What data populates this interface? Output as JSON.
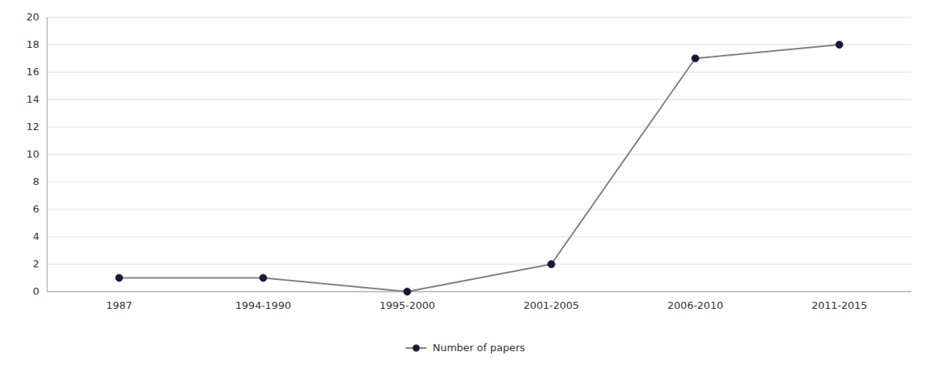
{
  "chart_data": {
    "type": "line",
    "categories": [
      "1987",
      "1994-1990",
      "1995-2000",
      "2001-2005",
      "2006-2010",
      "2011-2015"
    ],
    "series": [
      {
        "name": "Number of papers",
        "color": "#808080",
        "colors": [
          "#1a1a2e",
          "#1a1a2e",
          "#1a1a2e",
          "#1a1a2e",
          "#1a1a2e",
          "#1a1a2e"
        ],
        "marker": "circle",
        "values": [
          1,
          1,
          0,
          2,
          17,
          18
        ]
      }
    ],
    "ylim": [
      0,
      20
    ],
    "yticks": [
      0,
      2,
      4,
      6,
      8,
      10,
      12,
      14,
      16,
      18,
      20
    ],
    "grid": true,
    "legend": "bottom"
  }
}
